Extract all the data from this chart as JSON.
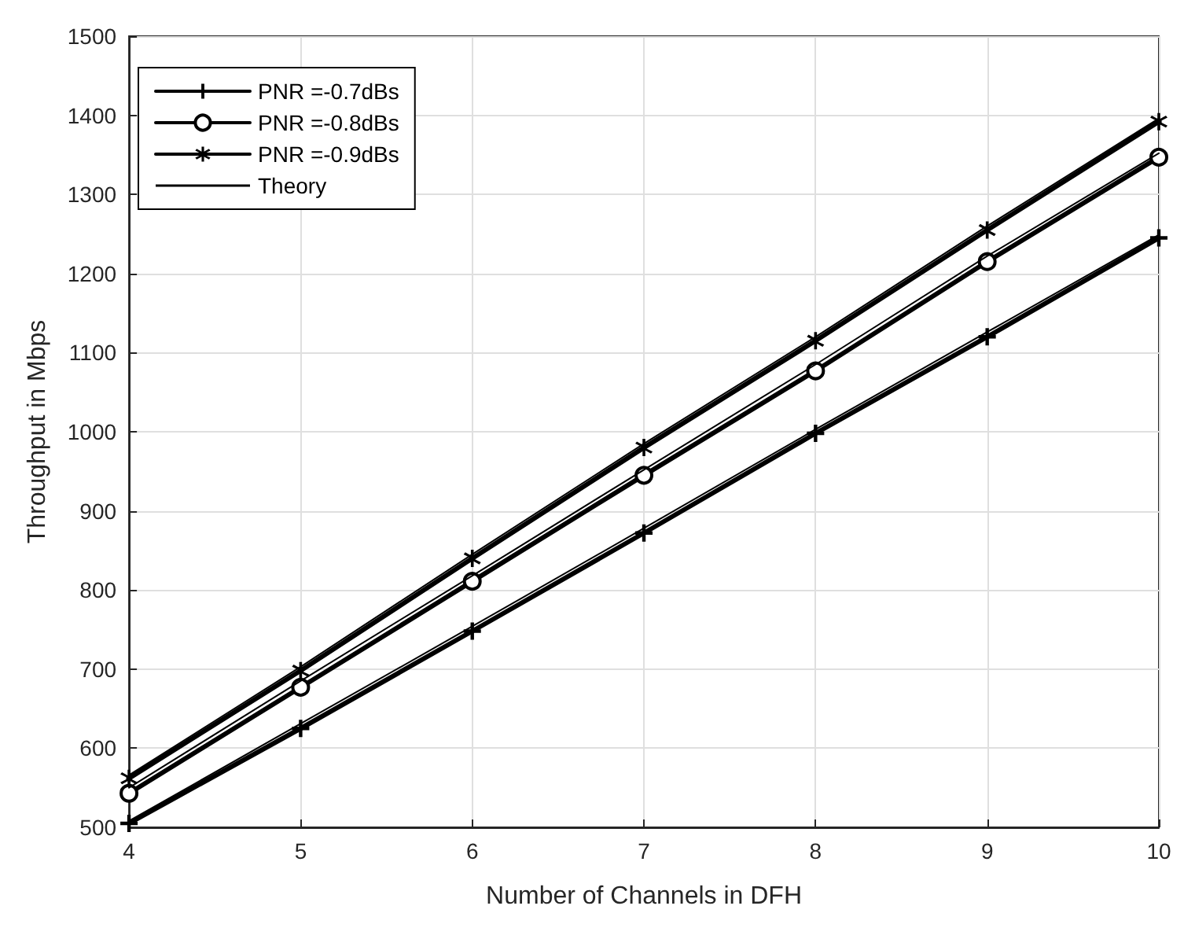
{
  "chart_data": {
    "type": "line",
    "xlabel": "Number of Channels in DFH",
    "ylabel": "Throughput in Mbps",
    "x": [
      4,
      5,
      6,
      7,
      8,
      9,
      10
    ],
    "series": [
      {
        "name": "PNR =-0.7dBs",
        "color": "#000000",
        "marker": "cross",
        "values": [
          505,
          625,
          748,
          872,
          998,
          1120,
          1245
        ]
      },
      {
        "name": "PNR =-0.8dBs",
        "color": "#000000",
        "marker": "circle",
        "values": [
          543,
          677,
          811,
          945,
          1077,
          1215,
          1347
        ]
      },
      {
        "name": "PNR =-0.9dBs",
        "color": "#000000",
        "marker": "star",
        "values": [
          562,
          698,
          840,
          980,
          1115,
          1255,
          1392
        ]
      },
      {
        "name": "Theory",
        "color": "#000000",
        "marker": "none",
        "values": [
          508,
          631,
          754,
          878,
          1003,
          1126,
          1249
        ]
      },
      {
        "color": "#000000",
        "marker": "none",
        "values": [
          550,
          685,
          818,
          952,
          1085,
          1222,
          1352
        ]
      },
      {
        "color": "#000000",
        "marker": "none",
        "values": [
          566,
          703,
          845,
          985,
          1120,
          1260,
          1396
        ]
      }
    ],
    "xlim": [
      4,
      10
    ],
    "xticks": [
      4,
      5,
      6,
      7,
      8,
      9,
      10
    ],
    "ylim": [
      500,
      1500
    ],
    "yticks": [
      500,
      600,
      700,
      800,
      900,
      1000,
      1100,
      1200,
      1300,
      1400,
      1500
    ],
    "grid": true,
    "legend": "top left",
    "line_style": "solid"
  }
}
